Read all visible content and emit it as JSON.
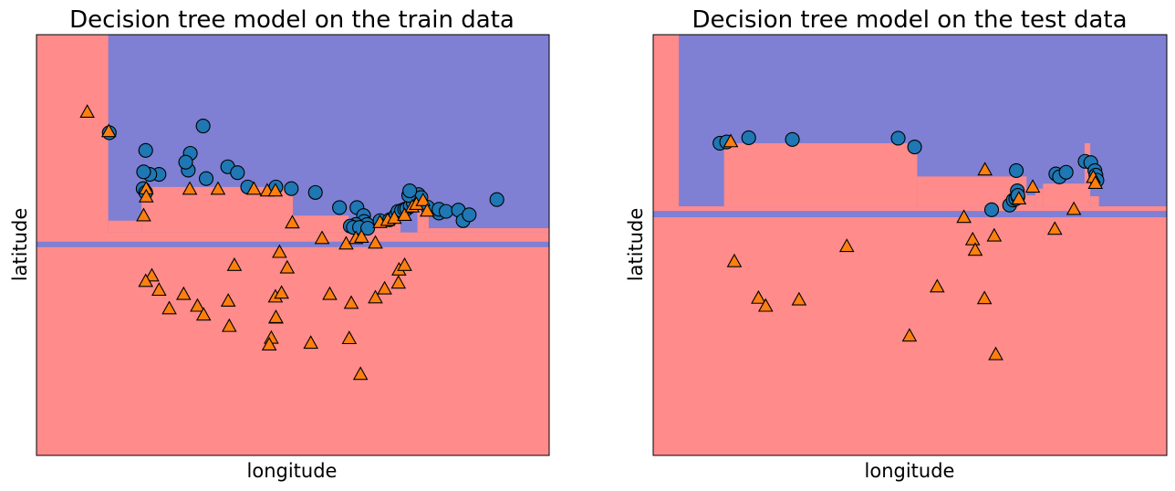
{
  "figure": {
    "x_axis_label": "longitude",
    "y_axis_label": "latitude"
  },
  "colors": {
    "region_class_a": "#ff8b8b",
    "region_class_b": "#7f7fd4",
    "point_class_a": "#ff7f0e",
    "point_class_b": "#1f77b4",
    "edge": "#000000"
  },
  "chart_data": [
    {
      "type": "scatter",
      "title": "Decision tree model on the train data",
      "xlabel": "longitude",
      "ylabel": "latitude",
      "ticks_shown": false,
      "xlim": [
        0,
        100
      ],
      "ylim": [
        0,
        100
      ],
      "decision_regions": [
        {
          "class": "b",
          "x0": 14,
          "x1": 100,
          "y0": 53.0,
          "y1": 100
        },
        {
          "class": "a",
          "x0": 14,
          "x1": 20.5,
          "y0": 53.0,
          "y1": 55.8
        },
        {
          "class": "a",
          "x0": 20.5,
          "x1": 50.0,
          "y0": 53.0,
          "y1": 63.8
        },
        {
          "class": "a",
          "x0": 50.0,
          "x1": 60.9,
          "y0": 53.0,
          "y1": 57.0
        },
        {
          "class": "a",
          "x0": 60.9,
          "x1": 71.0,
          "y0": 53.0,
          "y1": 55.3
        },
        {
          "class": "a",
          "x0": 74.3,
          "x1": 76.5,
          "y0": 53.0,
          "y1": 61.9
        },
        {
          "class": "a",
          "x0": 76.5,
          "x1": 100,
          "y0": 53.0,
          "y1": 54.0
        },
        {
          "class": "b",
          "x0": 0,
          "x1": 100,
          "y0": 49.5,
          "y1": 50.8
        }
      ],
      "series": [
        {
          "marker": "circle",
          "points": [
            [
              14.2,
              76.7
            ],
            [
              21.3,
              72.5
            ],
            [
              32.5,
              78.3
            ],
            [
              30.0,
              71.8
            ],
            [
              29.6,
              67.8
            ],
            [
              29.1,
              69.7
            ],
            [
              23.9,
              66.8
            ],
            [
              22.1,
              66.8
            ],
            [
              20.9,
              67.4
            ],
            [
              20.8,
              63.4
            ],
            [
              21.3,
              62.5
            ],
            [
              33.1,
              65.8
            ],
            [
              37.3,
              68.6
            ],
            [
              39.2,
              67.2
            ],
            [
              41.2,
              63.8
            ],
            [
              46.7,
              63.8
            ],
            [
              49.7,
              63.4
            ],
            [
              54.4,
              62.5
            ],
            [
              59.1,
              58.9
            ],
            [
              62.5,
              58.9
            ],
            [
              63.8,
              57.0
            ],
            [
              63.9,
              55.6
            ],
            [
              64.5,
              54.9
            ],
            [
              62.3,
              54.9
            ],
            [
              61.2,
              54.5
            ],
            [
              61.8,
              54.2
            ],
            [
              63.0,
              54.2
            ],
            [
              64.6,
              54.0
            ],
            [
              67.0,
              55.8
            ],
            [
              68.9,
              56.0
            ],
            [
              70.1,
              57.1
            ],
            [
              70.5,
              58.0
            ],
            [
              71.2,
              58.2
            ],
            [
              71.8,
              58.5
            ],
            [
              72.2,
              58.6
            ],
            [
              72.9,
              59.2
            ],
            [
              73.5,
              60.0
            ],
            [
              74.5,
              62.0
            ],
            [
              75.0,
              61.3
            ],
            [
              76.3,
              59.0
            ],
            [
              78.5,
              57.6
            ],
            [
              78.5,
              58.5
            ],
            [
              79.9,
              58.0
            ],
            [
              82.3,
              58.3
            ],
            [
              83.2,
              55.8
            ],
            [
              84.4,
              57.2
            ],
            [
              89.8,
              60.8
            ],
            [
              72.6,
              61.8
            ],
            [
              72.8,
              62.9
            ]
          ]
        },
        {
          "marker": "triangle",
          "points": [
            [
              9.9,
              81.5
            ],
            [
              14.1,
              76.9
            ],
            [
              21.4,
              63.3
            ],
            [
              21.4,
              61.4
            ],
            [
              20.9,
              56.9
            ],
            [
              29.9,
              63.2
            ],
            [
              35.4,
              63.2
            ],
            [
              42.4,
              63.2
            ],
            [
              45.0,
              62.8
            ],
            [
              46.6,
              62.8
            ],
            [
              49.9,
              55.2
            ],
            [
              55.7,
              51.5
            ],
            [
              60.4,
              50.2
            ],
            [
              62.3,
              51.5
            ],
            [
              63.4,
              51.8
            ],
            [
              66.1,
              50.4
            ],
            [
              67.0,
              55.3
            ],
            [
              68.5,
              55.8
            ],
            [
              69.8,
              56.3
            ],
            [
              71.8,
              57.0
            ],
            [
              73.3,
              59.0
            ],
            [
              74.1,
              59.6
            ],
            [
              75.4,
              60.5
            ],
            [
              76.2,
              58.0
            ],
            [
              47.4,
              48.2
            ],
            [
              48.9,
              44.5
            ],
            [
              38.6,
              45.1
            ],
            [
              22.5,
              42.6
            ],
            [
              21.3,
              41.3
            ],
            [
              23.9,
              39.2
            ],
            [
              28.7,
              38.2
            ],
            [
              31.4,
              35.4
            ],
            [
              32.6,
              33.3
            ],
            [
              37.4,
              36.6
            ],
            [
              37.6,
              30.6
            ],
            [
              25.9,
              34.8
            ],
            [
              46.6,
              37.6
            ],
            [
              47.8,
              38.5
            ],
            [
              46.7,
              32.6
            ],
            [
              46.7,
              32.7
            ],
            [
              45.8,
              27.8
            ],
            [
              45.4,
              26.2
            ],
            [
              53.5,
              26.6
            ],
            [
              57.2,
              38.2
            ],
            [
              66.1,
              37.4
            ],
            [
              67.9,
              39.5
            ],
            [
              70.6,
              40.9
            ],
            [
              70.7,
              44.0
            ],
            [
              71.8,
              45.1
            ],
            [
              61.4,
              36.1
            ],
            [
              61.0,
              27.7
            ],
            [
              63.2,
              19.2
            ]
          ]
        }
      ]
    },
    {
      "type": "scatter",
      "title": "Decision tree model on the test data",
      "xlabel": "longitude",
      "ylabel": "latitude",
      "ticks_shown": false,
      "xlim": [
        0,
        100
      ],
      "ylim": [
        0,
        100
      ],
      "decision_regions": [
        {
          "class": "b",
          "x0": 5,
          "x1": 100,
          "y0": 59.2,
          "y1": 100
        },
        {
          "class": "a",
          "x0": 13.8,
          "x1": 51.4,
          "y0": 59.2,
          "y1": 74.2
        },
        {
          "class": "a",
          "x0": 51.4,
          "x1": 72.7,
          "y0": 59.2,
          "y1": 66.3
        },
        {
          "class": "a",
          "x0": 72.7,
          "x1": 74.4,
          "y0": 59.2,
          "y1": 61.8
        },
        {
          "class": "a",
          "x0": 74.4,
          "x1": 75.9,
          "y0": 59.2,
          "y1": 63.4
        },
        {
          "class": "a",
          "x0": 75.9,
          "x1": 85.1,
          "y0": 59.2,
          "y1": 64.6
        },
        {
          "class": "a",
          "x0": 84.0,
          "x1": 85.1,
          "y0": 64.6,
          "y1": 74.2
        },
        {
          "class": "a",
          "x0": 85.1,
          "x1": 86.8,
          "y0": 59.2,
          "y1": 61.6
        },
        {
          "class": "b",
          "x0": 0,
          "x1": 100,
          "y0": 56.6,
          "y1": 58.1
        }
      ],
      "series": [
        {
          "marker": "circle",
          "points": [
            [
              13.0,
              74.2
            ],
            [
              14.3,
              74.5
            ],
            [
              18.6,
              75.5
            ],
            [
              27.1,
              75.1
            ],
            [
              47.7,
              75.4
            ],
            [
              50.9,
              73.3
            ],
            [
              70.7,
              67.7
            ],
            [
              65.9,
              58.4
            ],
            [
              69.4,
              59.5
            ],
            [
              70.1,
              60.7
            ],
            [
              70.6,
              61.0
            ],
            [
              71.0,
              61.4
            ],
            [
              70.9,
              62.9
            ],
            [
              71.0,
              61.8
            ],
            [
              78.4,
              66.9
            ],
            [
              79.1,
              66.2
            ],
            [
              80.4,
              67.3
            ],
            [
              84.1,
              69.9
            ],
            [
              85.2,
              69.6
            ],
            [
              86.0,
              67.7
            ],
            [
              86.2,
              66.6
            ],
            [
              86.4,
              65.4
            ]
          ]
        },
        {
          "marker": "triangle",
          "points": [
            [
              15.1,
              74.5
            ],
            [
              15.8,
              46.0
            ],
            [
              20.5,
              37.3
            ],
            [
              21.9,
              35.4
            ],
            [
              28.4,
              36.9
            ],
            [
              37.7,
              49.6
            ],
            [
              49.9,
              28.3
            ],
            [
              55.3,
              40.0
            ],
            [
              60.5,
              56.5
            ],
            [
              62.2,
              51.2
            ],
            [
              62.7,
              48.7
            ],
            [
              64.6,
              67.8
            ],
            [
              64.5,
              37.2
            ],
            [
              66.4,
              52.1
            ],
            [
              66.7,
              23.9
            ],
            [
              71.2,
              60.9
            ],
            [
              73.9,
              63.7
            ],
            [
              78.2,
              53.7
            ],
            [
              81.9,
              58.4
            ],
            [
              85.7,
              66.0
            ],
            [
              86.1,
              64.6
            ]
          ]
        }
      ]
    }
  ]
}
